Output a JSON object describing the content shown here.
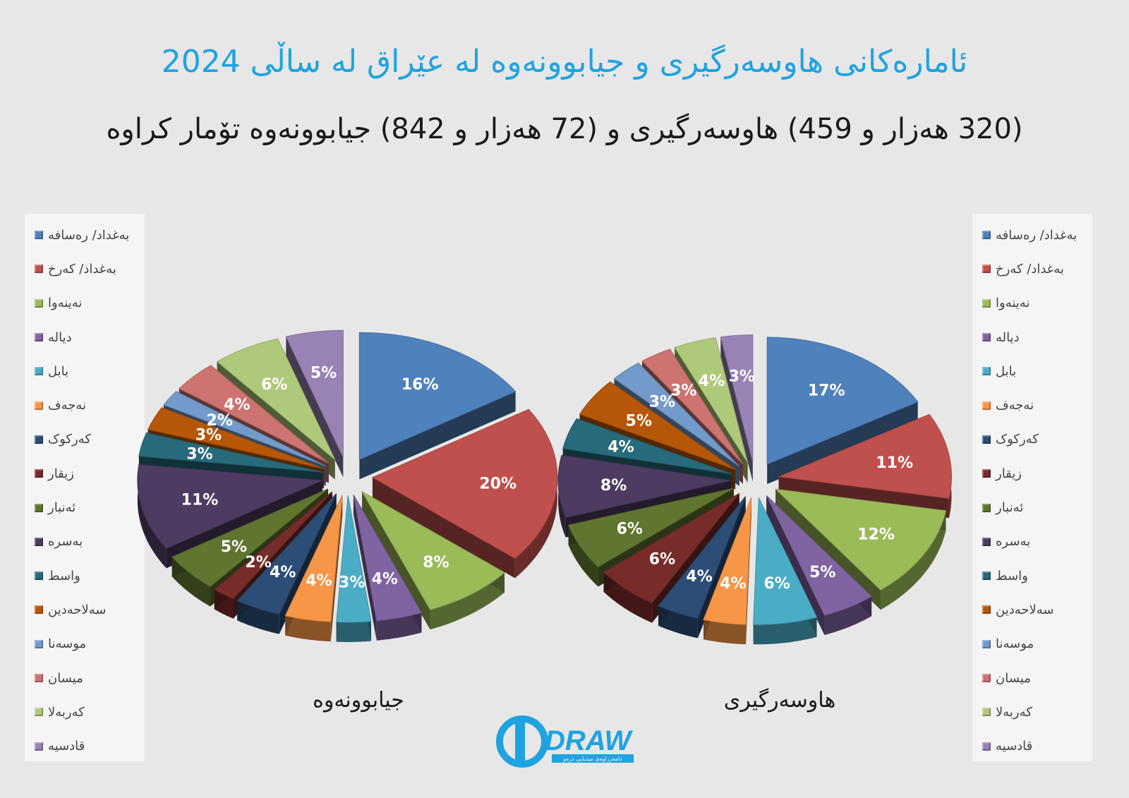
{
  "title": "ئامارەکانی هاوسەرگیری و جیابوونەوە لە عێراق لە ساڵی 2024",
  "subtitle": "(320 هەزار و 459) هاوسەرگیری و (72 هەزار و 842) جیابوونەوە تۆمار کراوە",
  "logo": {
    "wordmark": "DRAW",
    "tagline": "دامەزراوەی میدیایی درەو"
  },
  "colors": {
    "title": "#1fa3e0",
    "palette": [
      "#4f81bd",
      "#c0504d",
      "#9bbb59",
      "#8064a2",
      "#4bacc6",
      "#f79646",
      "#2c4d75",
      "#772c2a",
      "#5f7530",
      "#4d3b62",
      "#276a7c",
      "#b65708",
      "#729aca",
      "#cd7371",
      "#afc97a",
      "#9983b5"
    ]
  },
  "chart_data": [
    {
      "type": "pie",
      "title": "جیابوونەوە",
      "categories": [
        "بەغداد/ رەسافە",
        "بەغداد/ کەرخ",
        "نەینەوا",
        "دیالە",
        "بابل",
        "نەجەف",
        "کەرکوک",
        "زیقار",
        "ئەنبار",
        "بەسرە",
        "واسط",
        "سەلاحەدین",
        "موسەنا",
        "میسان",
        "کەربەلا",
        "قادسیە"
      ],
      "values": [
        16,
        20,
        8,
        4,
        3,
        4,
        4,
        2,
        5,
        11,
        3,
        3,
        2,
        4,
        6,
        5
      ],
      "unit": "%",
      "legend": "left"
    },
    {
      "type": "pie",
      "title": "هاوسەرگیری",
      "categories": [
        "بەغداد/ رەسافە",
        "بەغداد/ کەرخ",
        "نەینەوا",
        "دیالە",
        "بابل",
        "نەجەف",
        "کەرکوک",
        "زیقار",
        "ئەنبار",
        "بەسرە",
        "واسط",
        "سەلاحەدین",
        "موسەنا",
        "میسان",
        "کەربەلا",
        "قادسیە"
      ],
      "values": [
        17,
        11,
        12,
        5,
        6,
        4,
        4,
        6,
        6,
        8,
        4,
        5,
        3,
        3,
        4,
        3
      ],
      "unit": "%",
      "legend": "right"
    }
  ]
}
